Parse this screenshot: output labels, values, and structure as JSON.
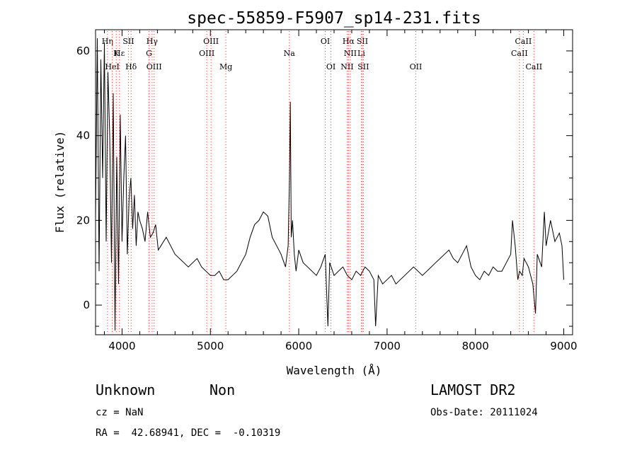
{
  "chart_data": {
    "type": "line",
    "title": "spec-55859-F5907_sp14-231.fits",
    "xlabel": "Wavelength (Å)",
    "ylabel": "Flux (relative)",
    "xlim": [
      3700,
      9100
    ],
    "ylim": [
      -7,
      65
    ],
    "xticks": [
      4000,
      5000,
      6000,
      7000,
      8000,
      9000
    ],
    "yticks": [
      0,
      20,
      40,
      60
    ],
    "grid": false,
    "series": [
      {
        "x": [
          3700,
          3720,
          3740,
          3760,
          3780,
          3800,
          3820,
          3840,
          3860,
          3880,
          3900,
          3920,
          3940,
          3960,
          3980,
          4000,
          4020,
          4040,
          4060,
          4080,
          4100,
          4120,
          4140,
          4160,
          4180,
          4200,
          4230,
          4260,
          4290,
          4320,
          4350,
          4380,
          4410,
          4440,
          4470,
          4500,
          4550,
          4600,
          4650,
          4700,
          4750,
          4800,
          4850,
          4900,
          4950,
          5000,
          5050,
          5100,
          5150,
          5200,
          5250,
          5300,
          5350,
          5400,
          5450,
          5500,
          5550,
          5600,
          5650,
          5700,
          5750,
          5800,
          5850,
          5880,
          5895,
          5905,
          5915,
          5930,
          5950,
          5970,
          6000,
          6050,
          6100,
          6150,
          6200,
          6250,
          6300,
          6330,
          6350,
          6400,
          6450,
          6500,
          6550,
          6600,
          6650,
          6700,
          6750,
          6800,
          6850,
          6870,
          6900,
          6950,
          7000,
          7050,
          7100,
          7150,
          7200,
          7250,
          7300,
          7350,
          7400,
          7450,
          7500,
          7550,
          7600,
          7650,
          7700,
          7750,
          7800,
          7850,
          7900,
          7950,
          8000,
          8050,
          8100,
          8150,
          8200,
          8250,
          8300,
          8350,
          8400,
          8420,
          8450,
          8480,
          8500,
          8530,
          8550,
          8600,
          8650,
          8680,
          8700,
          8750,
          8780,
          8800,
          8850,
          8900,
          8950,
          8980,
          9000
        ],
        "y": [
          20,
          63,
          8,
          58,
          30,
          62,
          15,
          55,
          40,
          10,
          50,
          -6,
          35,
          5,
          45,
          15,
          30,
          40,
          12,
          25,
          30,
          18,
          26,
          14,
          22,
          20,
          18,
          15,
          22,
          16,
          17,
          19,
          13,
          14,
          15,
          16,
          14,
          12,
          11,
          10,
          9,
          10,
          11,
          9,
          8,
          7,
          7,
          8,
          6,
          6,
          7,
          8,
          10,
          12,
          16,
          19,
          20,
          22,
          21,
          16,
          14,
          12,
          9,
          14,
          30,
          48,
          16,
          20,
          12,
          8,
          13,
          10,
          9,
          8,
          7,
          9,
          12,
          -5,
          10,
          7,
          8,
          9,
          7,
          6,
          8,
          7,
          9,
          8,
          6,
          -5,
          7,
          5,
          6,
          7,
          5,
          6,
          7,
          8,
          9,
          8,
          7,
          8,
          9,
          10,
          11,
          12,
          13,
          11,
          10,
          12,
          14,
          9,
          7,
          6,
          8,
          7,
          9,
          8,
          8,
          10,
          12,
          20,
          14,
          6,
          8,
          7,
          11,
          9,
          5,
          -2,
          12,
          9,
          22,
          14,
          20,
          15,
          17,
          14,
          6
        ]
      }
    ],
    "lines": [
      {
        "label": "Hη",
        "x": 3835,
        "row": 0
      },
      {
        "label": "Hε",
        "x": 3970,
        "row": 1
      },
      {
        "label": "K",
        "x": 3934,
        "row": 1
      },
      {
        "label": "HeI",
        "x": 3889,
        "row": 2
      },
      {
        "label": "SII",
        "x": 4072,
        "row": 0
      },
      {
        "label": "Hδ",
        "x": 4102,
        "row": 2
      },
      {
        "label": "Hγ",
        "x": 4340,
        "row": 0
      },
      {
        "label": "G",
        "x": 4305,
        "row": 1
      },
      {
        "label": "OIII",
        "x": 4363,
        "row": 2
      },
      {
        "label": "OIII",
        "x": 5007,
        "row": 0
      },
      {
        "label": "OIII",
        "x": 4959,
        "row": 1
      },
      {
        "label": "Mg",
        "x": 5175,
        "row": 2
      },
      {
        "label": "Na",
        "x": 5893,
        "row": 1
      },
      {
        "label": "OI",
        "x": 6300,
        "row": 0
      },
      {
        "label": "OI",
        "x": 6364,
        "row": 2
      },
      {
        "label": "Hα",
        "x": 6563,
        "row": 0
      },
      {
        "label": "SII",
        "x": 6720,
        "row": 0
      },
      {
        "label": "NII",
        "x": 6584,
        "row": 1
      },
      {
        "label": "Li",
        "x": 6708,
        "row": 1
      },
      {
        "label": "NII",
        "x": 6548,
        "row": 2
      },
      {
        "label": "SII",
        "x": 6731,
        "row": 2
      },
      {
        "label": "OII",
        "x": 7325,
        "row": 2
      },
      {
        "label": "CaII",
        "x": 8542,
        "row": 0
      },
      {
        "label": "CaII",
        "x": 8498,
        "row": 1
      },
      {
        "label": "CaII",
        "x": 8662,
        "row": 2
      }
    ]
  },
  "info": {
    "class": "Unknown",
    "subclass": "Non",
    "survey": "LAMOST DR2",
    "cz": "cz = NaN",
    "obs_date": "Obs-Date: 20111024",
    "coords": "RA =  42.68941, DEC =  -0.10319"
  }
}
